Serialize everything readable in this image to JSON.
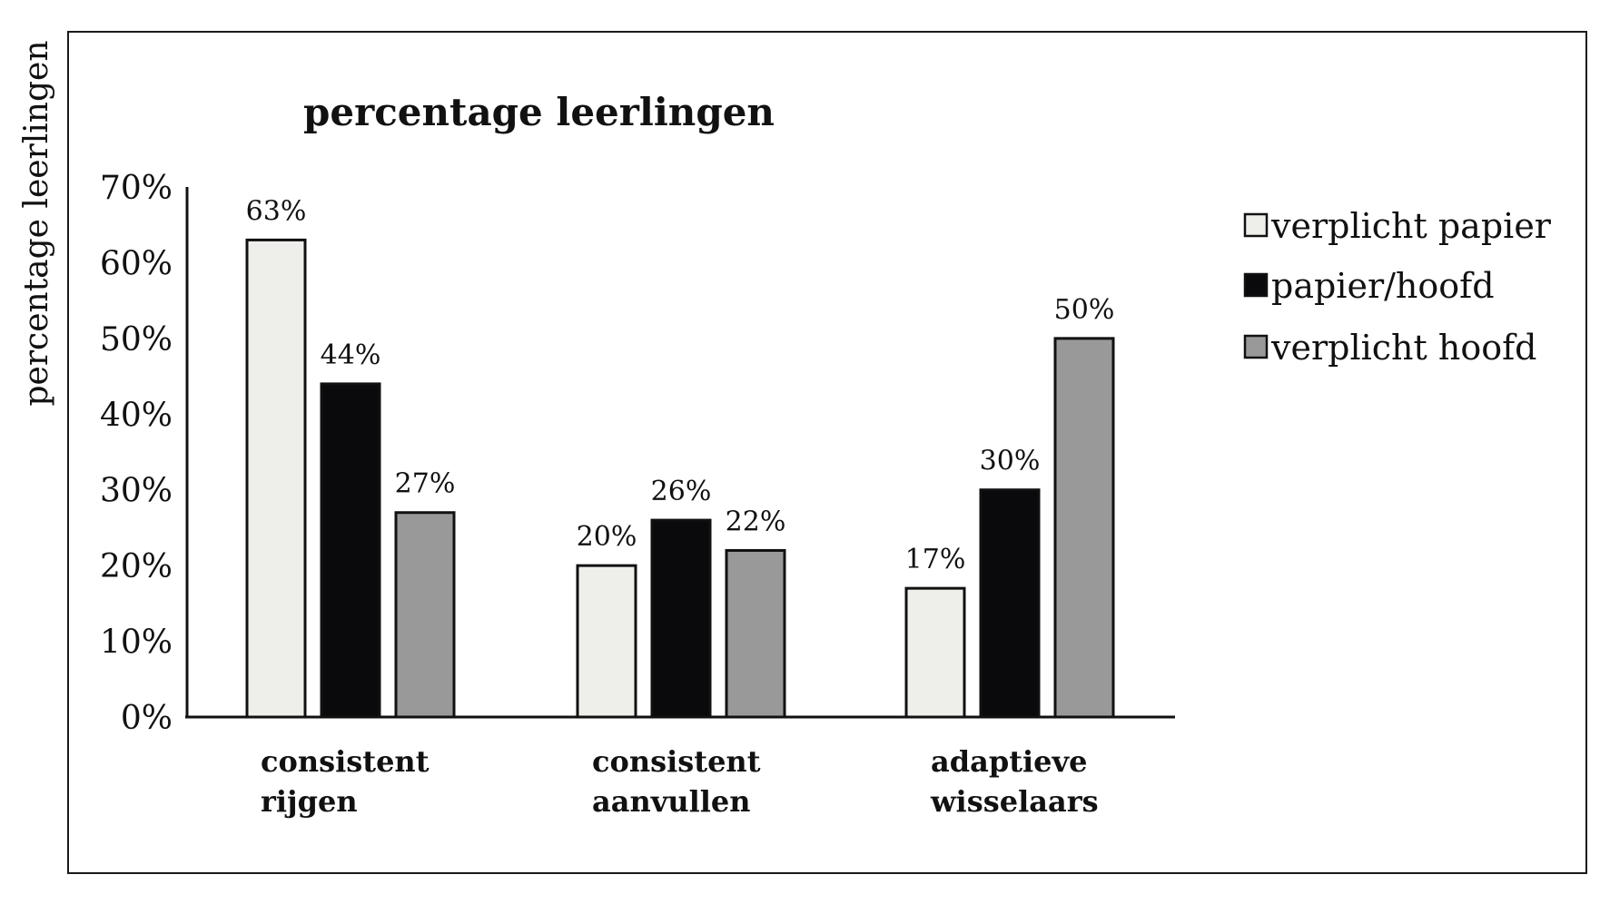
{
  "chart_data": {
    "type": "bar",
    "title": "percentage leerlingen",
    "ylabel": "percentage leerlingen",
    "xlabel": "",
    "ylim": [
      0,
      70
    ],
    "yticks": [
      "0%",
      "10%",
      "20%",
      "30%",
      "40%",
      "50%",
      "60%",
      "70%"
    ],
    "grid": false,
    "legend_position": "right",
    "categories": [
      [
        "consistent",
        "rijgen"
      ],
      [
        "consistent",
        "aanvullen"
      ],
      [
        "adaptieve",
        "wisselaars"
      ]
    ],
    "series": [
      {
        "name": "verplicht papier",
        "color": "#eeeeeb",
        "values": [
          63,
          20,
          17
        ],
        "labels": [
          "63%",
          "20%",
          "17%"
        ]
      },
      {
        "name": "papier/hoofd",
        "color": "#0a0a0d",
        "values": [
          44,
          26,
          30
        ],
        "labels": [
          "44%",
          "26%",
          "30%"
        ]
      },
      {
        "name": "verplicht hoofd",
        "color": "#999999",
        "values": [
          27,
          22,
          50
        ],
        "labels": [
          "27%",
          "22%",
          "50%"
        ]
      }
    ]
  }
}
